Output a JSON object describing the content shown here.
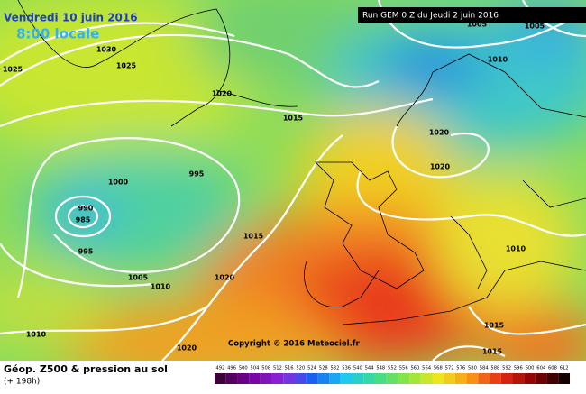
{
  "header": {
    "date": "Vendredi 10 juin 2016",
    "time": "8:00 locale",
    "run": "Run GEM 0 Z du Jeudi 2 juin 2016"
  },
  "isobar_labels": [
    "1030",
    "1025",
    "1025",
    "1020",
    "1015",
    "995",
    "1000",
    "990",
    "985",
    "995",
    "1015",
    "1005",
    "1010",
    "1020",
    "1010",
    "1020",
    "1020",
    "1020",
    "1010",
    "1015",
    "1015",
    "1005",
    "1005",
    "1010"
  ],
  "copyright": "Copyright © 2016 Meteociel.fr",
  "footer": {
    "title": "Géop. Z500 & pression au sol",
    "lead": "(+ 198h)"
  },
  "scale": [
    492,
    496,
    500,
    504,
    508,
    512,
    516,
    520,
    524,
    528,
    532,
    536,
    540,
    544,
    548,
    552,
    556,
    560,
    564,
    568,
    572,
    576,
    580,
    584,
    588,
    592,
    596,
    600,
    604,
    608,
    612
  ]
}
